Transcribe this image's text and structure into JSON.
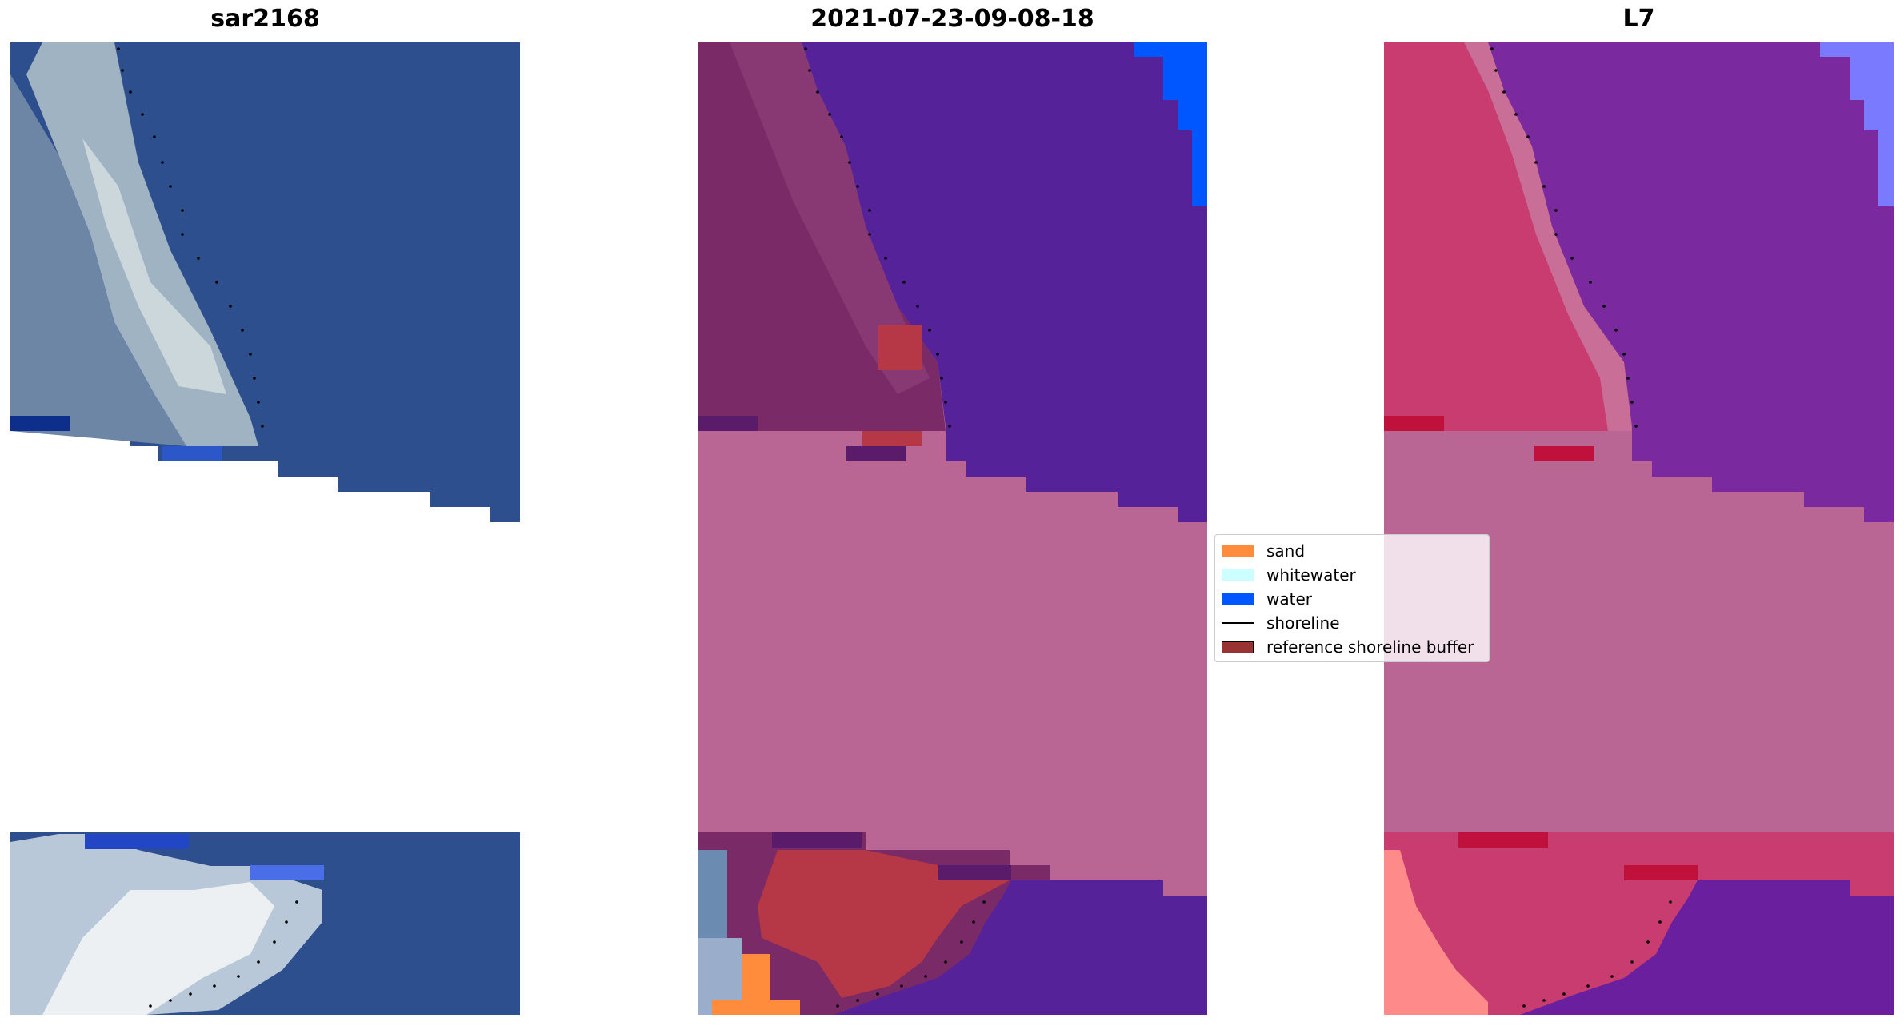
{
  "panels": [
    {
      "title": "sar2168"
    },
    {
      "title": "2021-07-23-09-08-18"
    },
    {
      "title": "L7"
    }
  ],
  "legend": [
    {
      "label": "sand",
      "color": "#ff8c3c"
    },
    {
      "label": "whitewater",
      "color": "#ccffff"
    },
    {
      "label": "water",
      "color": "#0057ff"
    },
    {
      "label": "shoreline",
      "color": "#000000"
    },
    {
      "label": "reference shoreline buffer",
      "color": "#993333"
    }
  ]
}
